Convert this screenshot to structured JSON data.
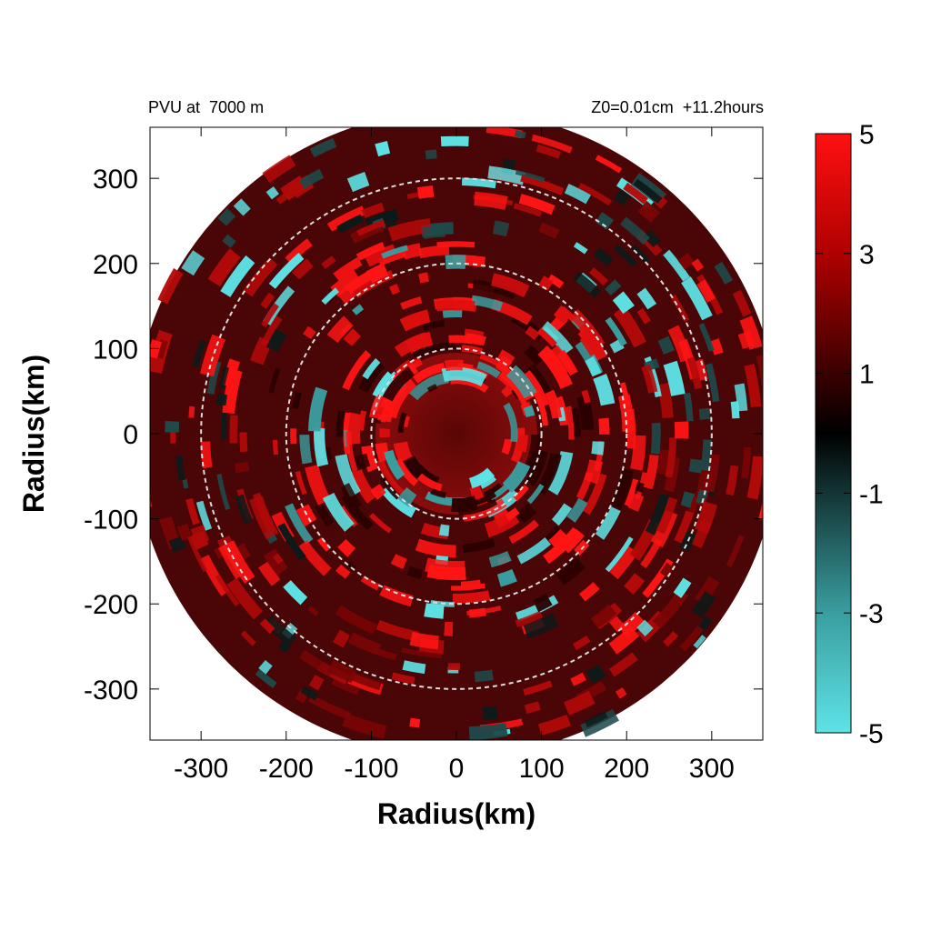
{
  "chart_data": {
    "type": "heatmap",
    "title_left": "PVU at  7000 m",
    "title_right": "Z0=0.01cm  +11.2hours",
    "xlabel": "Radius(km)",
    "ylabel": "Radius(km)",
    "xlim": [
      -360,
      360
    ],
    "ylim": [
      -360,
      360
    ],
    "x_ticks": [
      -300,
      -200,
      -100,
      0,
      100,
      200,
      300
    ],
    "y_ticks": [
      300,
      200,
      100,
      0,
      -100,
      -200,
      -300
    ],
    "x_tick_labels": [
      "-300",
      "-200",
      "-100",
      "0",
      "100",
      "200",
      "300"
    ],
    "y_tick_labels": [
      "300",
      "200",
      "100",
      "0",
      "-100",
      "-200",
      "-300"
    ],
    "domain_radius_km": 380,
    "reference_circles_km": [
      100,
      200,
      300
    ],
    "colorbar": {
      "range": [
        -5,
        5
      ],
      "ticks": [
        5,
        3,
        1,
        -1,
        -3,
        -5
      ],
      "tick_labels": [
        "5",
        "3",
        "1",
        "-1",
        "-3",
        "-5"
      ],
      "colors": {
        "min": "#5ee3e6",
        "mid": "#000000",
        "max": "#ff0000"
      }
    }
  }
}
